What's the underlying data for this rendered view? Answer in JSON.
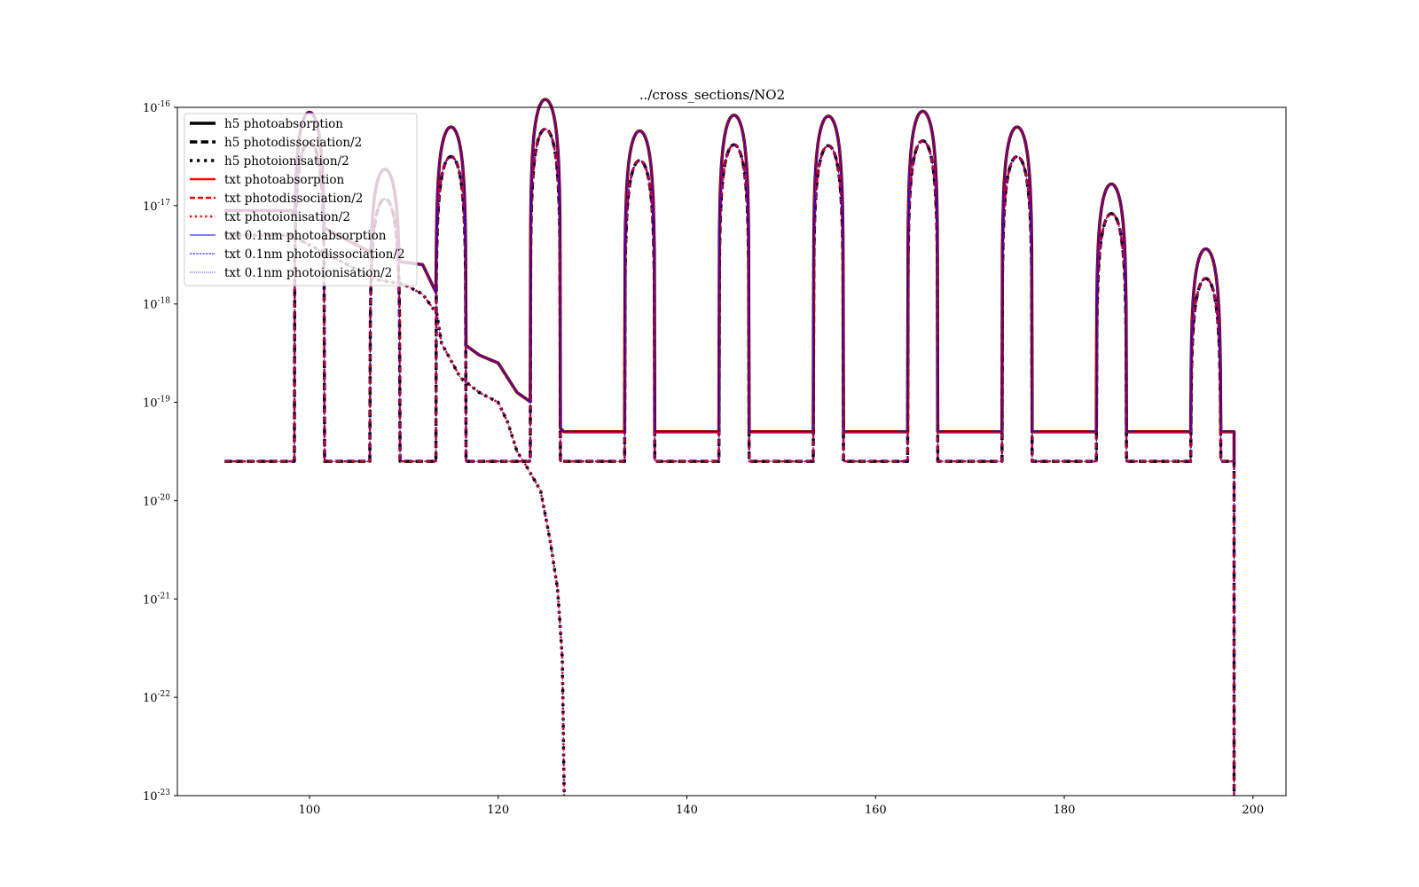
{
  "chart_data": {
    "type": "line",
    "title": "../cross_sections/NO2",
    "xlabel": "",
    "ylabel": "",
    "xlim": [
      86,
      203.5
    ],
    "ylim_exponent": [
      -23,
      -16
    ],
    "yscale": "log",
    "x_ticks": [
      "100",
      "120",
      "140",
      "160",
      "180",
      "200"
    ],
    "x_tick_values": [
      100,
      120,
      140,
      160,
      180,
      200
    ],
    "y_ticks_base": "10",
    "y_ticks_exp": [
      "-23",
      "-22",
      "-21",
      "-20",
      "-19",
      "-18",
      "-17",
      "-16"
    ],
    "y_tick_exp_values": [
      -23,
      -22,
      -21,
      -20,
      -19,
      -18,
      -17,
      -16
    ],
    "grid": false,
    "legend_placement": "upper-left",
    "peak_centers": [
      100,
      108,
      115,
      125,
      135,
      145,
      155,
      165,
      175,
      185,
      195
    ],
    "peak_max_log10": [
      -16.05,
      -16.63,
      -16.2,
      -15.92,
      -16.24,
      -16.08,
      -16.09,
      -16.04,
      -16.2,
      -16.78,
      -17.44
    ],
    "peak_halfwidth_nm": 1.6,
    "photoabsorption_background": [
      {
        "x": 91,
        "log10": -17.05
      },
      {
        "x": 98,
        "log10": -17.05
      },
      {
        "x": 108,
        "log10": -17.55
      },
      {
        "x": 112,
        "log10": -17.6
      },
      {
        "x": 113.5,
        "log10": -17.9
      },
      {
        "x": 116,
        "log10": -18.38
      },
      {
        "x": 118,
        "log10": -18.52
      },
      {
        "x": 120,
        "log10": -18.6
      },
      {
        "x": 122,
        "log10": -18.9
      },
      {
        "x": 123.5,
        "log10": -19
      },
      {
        "x": 127,
        "log10": -19.3
      },
      {
        "x": 198,
        "log10": -19.3
      }
    ],
    "photodissociation_floor_log10": -19.6,
    "photoionisation_half": [
      {
        "x": 91,
        "log10": -17.3
      },
      {
        "x": 98,
        "log10": -17.3
      },
      {
        "x": 107,
        "log10": -17.75
      },
      {
        "x": 110,
        "log10": -17.8
      },
      {
        "x": 112,
        "log10": -17.9
      },
      {
        "x": 113.5,
        "log10": -18.1
      },
      {
        "x": 114,
        "log10": -18.4
      },
      {
        "x": 116,
        "log10": -18.75
      },
      {
        "x": 118,
        "log10": -18.9
      },
      {
        "x": 120,
        "log10": -19
      },
      {
        "x": 121,
        "log10": -19.2
      },
      {
        "x": 122,
        "log10": -19.5
      },
      {
        "x": 123,
        "log10": -19.65
      },
      {
        "x": 124.5,
        "log10": -19.9
      },
      {
        "x": 125.5,
        "log10": -20.4
      },
      {
        "x": 126.3,
        "log10": -20.9
      },
      {
        "x": 126.8,
        "log10": -21.6
      },
      {
        "x": 127,
        "log10": -23
      }
    ],
    "x_end": 198,
    "series": [
      {
        "name": "h5 photoabsorption",
        "color": "#000000",
        "style": "solid",
        "width": 3.5
      },
      {
        "name": "h5 photodissociation/2",
        "color": "#000000",
        "style": "dashed",
        "width": 3.5
      },
      {
        "name": "h5 photoionisation/2",
        "color": "#000000",
        "style": "dotted",
        "width": 3.5
      },
      {
        "name": "txt photoabsorption",
        "color": "#ff0000",
        "style": "solid",
        "width": 2.5
      },
      {
        "name": "txt photodissociation/2",
        "color": "#ff0000",
        "style": "dashed",
        "width": 2.5
      },
      {
        "name": "txt photoionisation/2",
        "color": "#ff0000",
        "style": "dotted",
        "width": 2.5
      },
      {
        "name": "txt 0.1nm photoabsorption",
        "color": "#0000ff",
        "style": "solid",
        "width": 1
      },
      {
        "name": "txt 0.1nm photodissociation/2",
        "color": "#0000ff",
        "style": "dashed",
        "width": 1
      },
      {
        "name": "txt 0.1nm photoionisation/2",
        "color": "#0000ff",
        "style": "dotted",
        "width": 1
      }
    ]
  }
}
